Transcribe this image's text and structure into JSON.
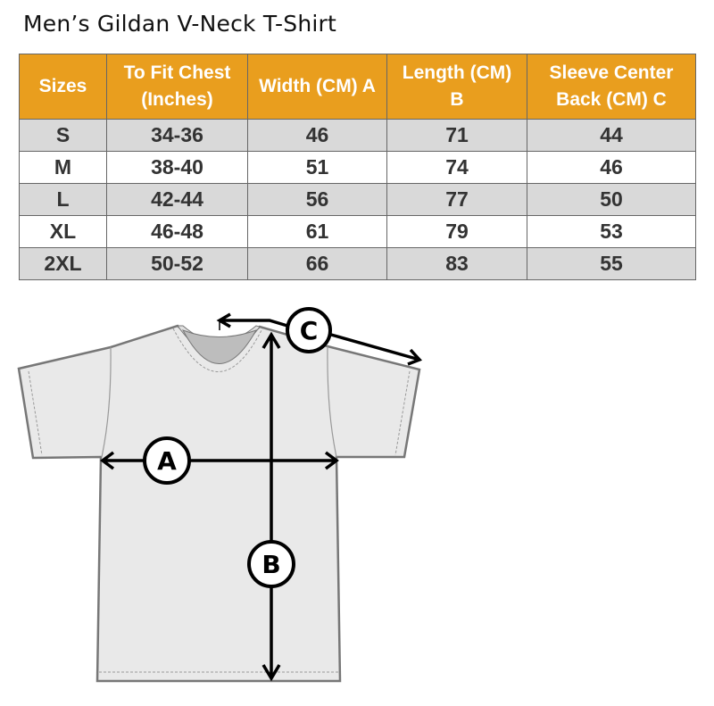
{
  "title": "Men’s Gildan V-Neck T-Shirt",
  "headers": [
    "Sizes",
    "To Fit Chest (Inches)",
    "Width (CM) A",
    "Length  (CM) B",
    "Sleeve Center Back (CM) C"
  ],
  "rows": [
    [
      "S",
      "34-36",
      "46",
      "71",
      "44"
    ],
    [
      "M",
      "38-40",
      "51",
      "74",
      "46"
    ],
    [
      "L",
      "42-44",
      "56",
      "77",
      "50"
    ],
    [
      "XL",
      "46-48",
      "61",
      "79",
      "53"
    ],
    [
      "2XL",
      "50-52",
      "66",
      "83",
      "55"
    ]
  ],
  "diagram": {
    "label_a": "A",
    "label_b": "B",
    "label_c": "C"
  },
  "colors": {
    "header": "#E99E1E",
    "stripe": "#D9D9D9"
  }
}
